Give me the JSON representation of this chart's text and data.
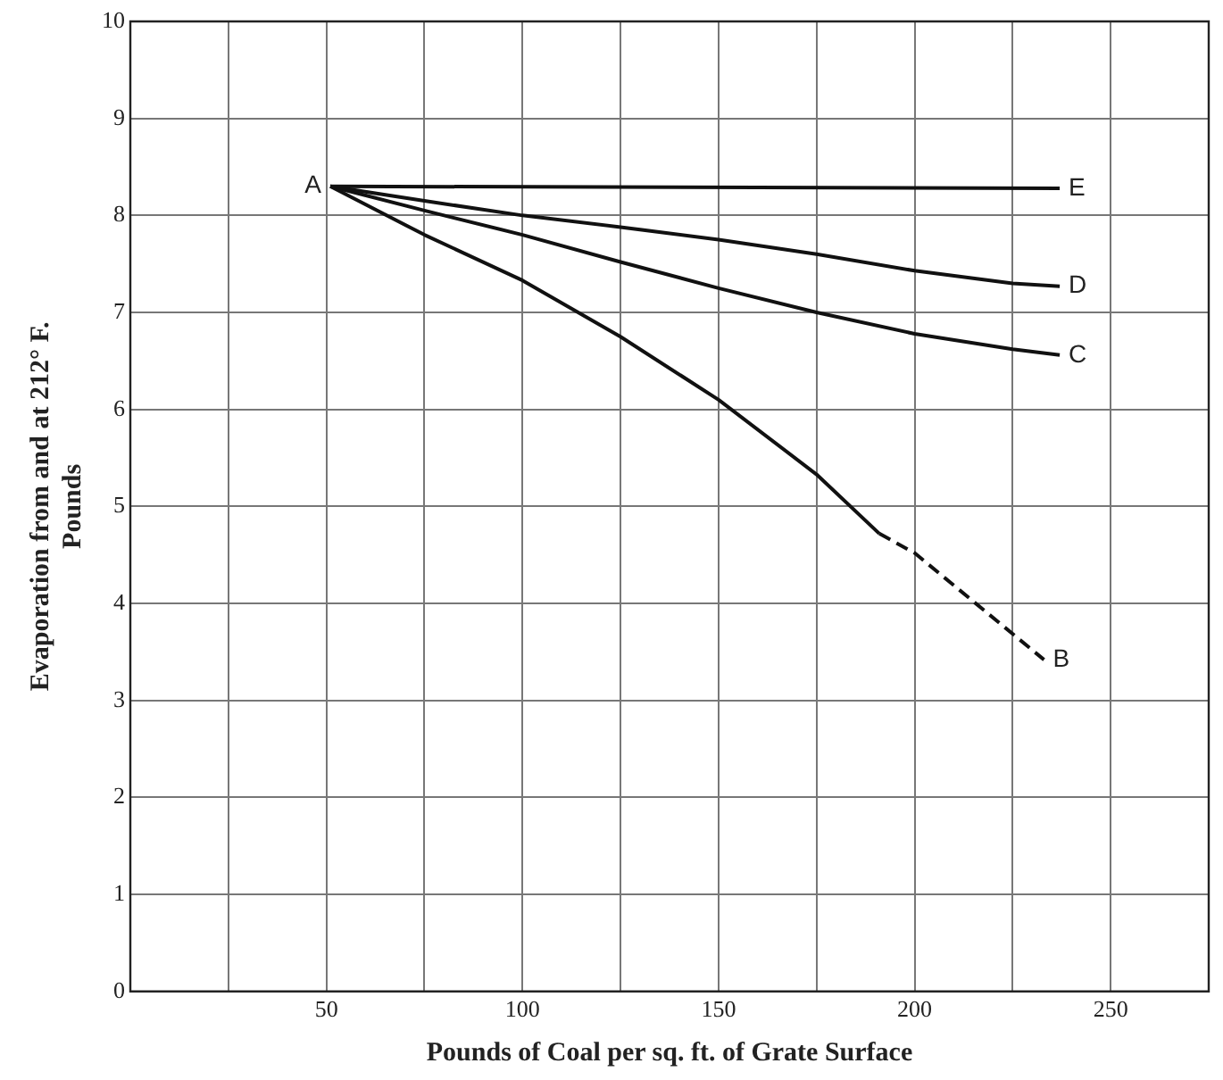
{
  "chart_data": {
    "type": "line",
    "xlabel": "Pounds of Coal per sq. ft. of Grate Surface",
    "ylabel": "Evaporation from and at 212° F.\nPounds",
    "xlim": [
      0,
      275
    ],
    "xticks": [
      {
        "value": 25,
        "label": null
      },
      50,
      {
        "value": 75,
        "label": null
      },
      100,
      {
        "value": 125,
        "label": null
      },
      150,
      {
        "value": 175,
        "label": null
      },
      200,
      {
        "value": 225,
        "label": null
      },
      250
    ],
    "ylim": [
      0,
      10
    ],
    "yticks": [
      0,
      1,
      2,
      3,
      4,
      5,
      6,
      7,
      8,
      9,
      10
    ],
    "grid": true,
    "marker": "none",
    "series": [
      {
        "color": "#111111",
        "line_style": "solid",
        "x": [
          51,
          237
        ],
        "values": [
          8.3,
          8.28
        ]
      },
      {
        "color": "#111111",
        "line_style": "solid",
        "x": [
          51,
          75,
          100,
          125,
          150,
          175,
          200,
          225,
          237
        ],
        "values": [
          8.3,
          8.15,
          8.0,
          7.88,
          7.75,
          7.6,
          7.43,
          7.3,
          7.27
        ]
      },
      {
        "color": "#111111",
        "line_style": "solid",
        "x": [
          51,
          75,
          100,
          125,
          150,
          175,
          200,
          225,
          237
        ],
        "values": [
          8.3,
          8.05,
          7.8,
          7.52,
          7.25,
          7.0,
          6.78,
          6.62,
          6.56
        ]
      },
      {
        "color": "#111111",
        "line_style": "solid",
        "x": [
          51,
          75,
          100,
          125,
          150,
          175,
          191
        ],
        "values": [
          8.3,
          7.8,
          7.33,
          6.75,
          6.1,
          5.33,
          4.72
        ]
      },
      {
        "color": "#111111",
        "line_style": "dashed",
        "x": [
          191,
          200,
          233
        ],
        "values": [
          4.72,
          4.52,
          3.42
        ]
      }
    ],
    "annotations": [
      {
        "text": "A",
        "x": 51,
        "y": 8.3
      },
      {
        "text": "E",
        "x": 237,
        "y": 8.28
      },
      {
        "text": "D",
        "x": 237,
        "y": 7.27
      },
      {
        "text": "C",
        "x": 237,
        "y": 6.56
      },
      {
        "text": "B",
        "x": 233,
        "y": 3.42
      }
    ]
  }
}
